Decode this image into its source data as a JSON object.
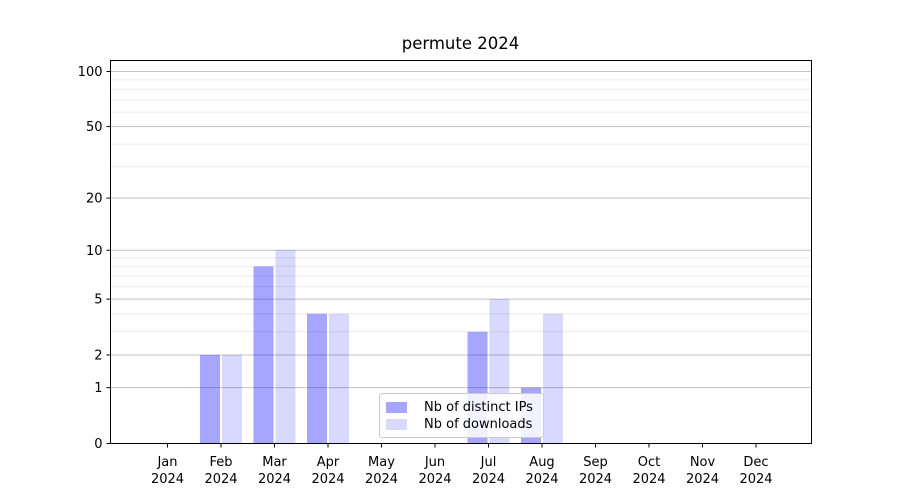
{
  "chart_data": {
    "type": "bar",
    "title": "permute 2024",
    "categories": [
      "Jan",
      "Feb",
      "Mar",
      "Apr",
      "May",
      "Jun",
      "Jul",
      "Aug",
      "Sep",
      "Oct",
      "Nov",
      "Dec"
    ],
    "year_label": "2024",
    "series": [
      {
        "name": "Nb of distinct IPs",
        "color": "#0000ff",
        "opacity": 0.35,
        "blended_hex": "#a6a6ff",
        "values": [
          0,
          2,
          8,
          4,
          0,
          0,
          3,
          1,
          0,
          0,
          0,
          0
        ]
      },
      {
        "name": "Nb of downloads",
        "color": "#0000ff",
        "opacity": 0.15,
        "blended_hex": "#d9d9ff",
        "values": [
          0,
          2,
          10,
          4,
          0,
          0,
          5,
          4,
          0,
          0,
          0,
          0
        ]
      }
    ],
    "yscale": "log1p",
    "ylim": [
      0,
      115
    ],
    "yticks": [
      0,
      1,
      2,
      5,
      10,
      20,
      50,
      100
    ],
    "minor_yticks": [
      3,
      4,
      6,
      7,
      8,
      9,
      30,
      40,
      60,
      70,
      80,
      90
    ],
    "grid": "horizontal major and minor gridlines",
    "legend_position": "lower center, inside plot",
    "colors": {
      "major_grid": "#c3c3c3",
      "minor_grid": "#ebebeb",
      "spine": "#000000"
    }
  }
}
